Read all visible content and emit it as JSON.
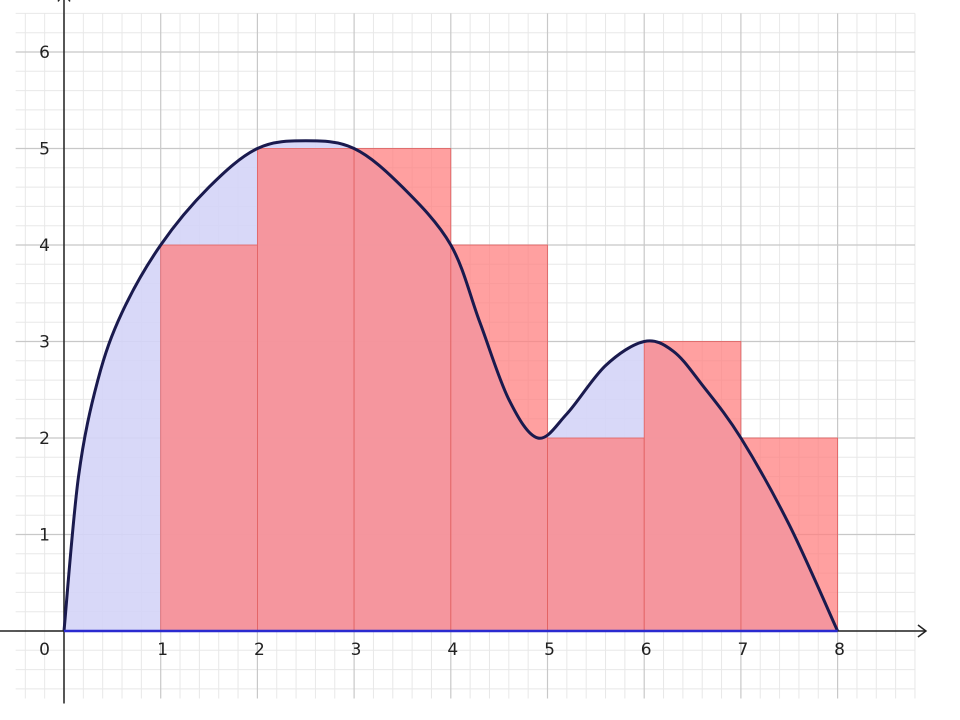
{
  "chart_data": {
    "type": "area",
    "title": "",
    "xlabel": "",
    "ylabel": "",
    "xlim": [
      -0.5,
      8.8
    ],
    "ylim": [
      -0.7,
      6.4
    ],
    "grid": true,
    "origin_label": "0",
    "x_ticks": [
      "1",
      "2",
      "3",
      "4",
      "5",
      "6",
      "7",
      "8"
    ],
    "x_tick_values": [
      1,
      2,
      3,
      4,
      5,
      6,
      7,
      8
    ],
    "y_ticks": [
      "1",
      "2",
      "3",
      "4",
      "5",
      "6"
    ],
    "y_tick_values": [
      1,
      2,
      3,
      4,
      5,
      6
    ],
    "curve": {
      "points": [
        [
          0,
          0
        ],
        [
          0.15,
          1.6
        ],
        [
          0.35,
          2.6
        ],
        [
          0.6,
          3.3
        ],
        [
          1,
          4
        ],
        [
          1.5,
          4.6
        ],
        [
          2,
          5
        ],
        [
          2.5,
          5.08
        ],
        [
          3,
          5
        ],
        [
          3.5,
          4.6
        ],
        [
          4,
          4
        ],
        [
          4.3,
          3.2
        ],
        [
          4.6,
          2.4
        ],
        [
          4.9,
          2
        ],
        [
          5.2,
          2.25
        ],
        [
          5.6,
          2.75
        ],
        [
          6,
          3
        ],
        [
          6.3,
          2.9
        ],
        [
          6.6,
          2.55
        ],
        [
          7,
          2
        ],
        [
          7.5,
          1.1
        ],
        [
          8,
          0
        ]
      ]
    },
    "rectangles": [
      {
        "x0": 1,
        "x1": 2,
        "height": 4
      },
      {
        "x0": 2,
        "x1": 3,
        "height": 5
      },
      {
        "x0": 3,
        "x1": 4,
        "height": 5
      },
      {
        "x0": 4,
        "x1": 5,
        "height": 4
      },
      {
        "x0": 5,
        "x1": 6,
        "height": 2
      },
      {
        "x0": 6,
        "x1": 7,
        "height": 3
      },
      {
        "x0": 7,
        "x1": 8,
        "height": 2
      }
    ],
    "colors": {
      "curve": "#1a1a4e",
      "curve_fill": "#d4d4f7",
      "rect_fill": "#ff8080",
      "rect_opacity": 0.75,
      "rect_stroke": "#e06060",
      "major_grid": "#c8c8c8",
      "minor_grid": "#e8e8e8",
      "axis": "#222222",
      "x_axis_overlay": "#2a2ad0"
    }
  }
}
